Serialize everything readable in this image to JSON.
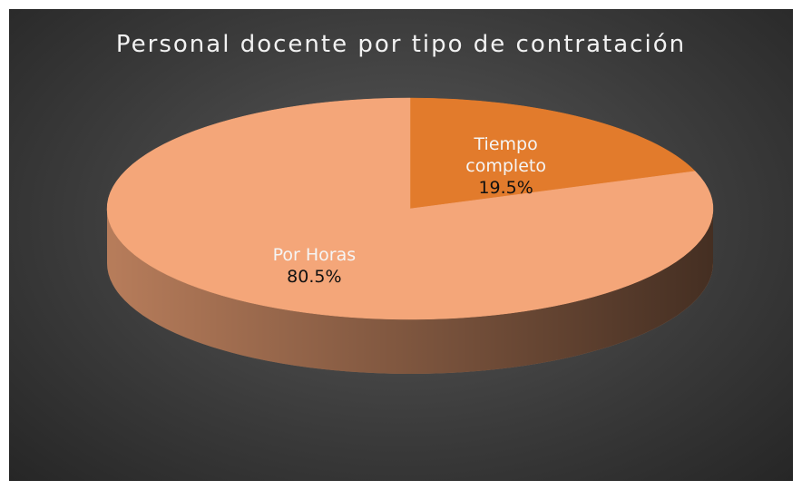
{
  "chart_data": {
    "type": "pie",
    "title": "Personal docente por tipo de contratación",
    "categories": [
      "Tiempo completo",
      "Por Horas"
    ],
    "values": [
      19.5,
      80.5
    ],
    "value_labels": [
      "19.5%",
      "80.5%"
    ],
    "colors": [
      "#e27b2c",
      "#f4a679"
    ]
  }
}
